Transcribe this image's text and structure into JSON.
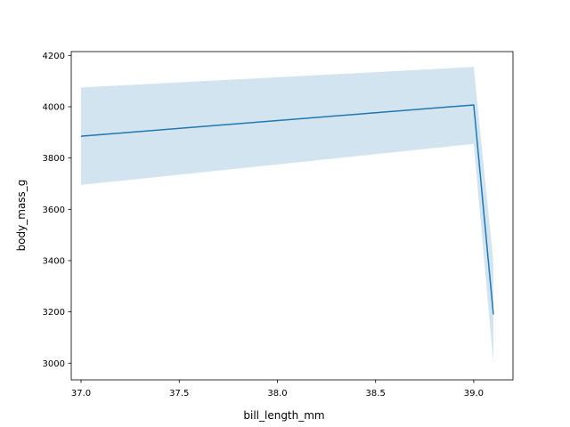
{
  "chart_data": {
    "type": "line",
    "title": "",
    "xlabel": "bill_length_mm",
    "ylabel": "body_mass_g",
    "xlim": [
      36.95,
      39.2
    ],
    "ylim": [
      2935,
      4215
    ],
    "xticks": [
      37.0,
      37.5,
      38.0,
      38.5,
      39.0
    ],
    "xtick_labels": [
      "37.0",
      "37.5",
      "38.0",
      "38.5",
      "39.0"
    ],
    "yticks": [
      3000,
      3200,
      3400,
      3600,
      3800,
      4000,
      4200
    ],
    "ytick_labels": [
      "3000",
      "3200",
      "3400",
      "3600",
      "3800",
      "4000",
      "4200"
    ],
    "grid": false,
    "series": [
      {
        "color": "#1f77b4",
        "band_color": "#1f77b4",
        "x": [
          37.0,
          39.0,
          39.1
        ],
        "y": [
          3885,
          4007,
          3190
        ],
        "ci_lower": [
          3695,
          3855,
          3000
        ],
        "ci_upper": [
          4075,
          4155,
          3395
        ]
      }
    ]
  }
}
